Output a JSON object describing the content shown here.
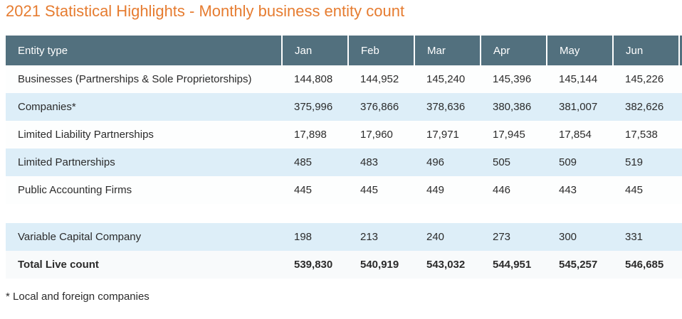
{
  "title": "2021 Statistical Highlights - Monthly business entity count",
  "footnote": "* Local and foreign companies",
  "colors": {
    "title_orange": "#e67c30",
    "header_bg": "#52707e",
    "header_text": "#ffffff",
    "alt_row_bg": "#ddeef8",
    "body_text": "#2b2b2b"
  },
  "table": {
    "columns": [
      "Entity type",
      "Jan",
      "Feb",
      "Mar",
      "Apr",
      "May",
      "Jun"
    ],
    "rows": [
      {
        "label": "Businesses (Partnerships & Sole Proprietorships)",
        "values": [
          "144,808",
          "144,952",
          "145,240",
          "145,396",
          "145,144",
          "145,226"
        ]
      },
      {
        "label": "Companies*",
        "values": [
          "375,996",
          "376,866",
          "378,636",
          "380,386",
          "381,007",
          "382,626"
        ]
      },
      {
        "label": "Limited Liability Partnerships",
        "values": [
          "17,898",
          "17,960",
          "17,971",
          "17,945",
          "17,854",
          "17,538"
        ]
      },
      {
        "label": "Limited Partnerships",
        "values": [
          "485",
          "483",
          "496",
          "505",
          "509",
          "519"
        ]
      },
      {
        "label": "Public Accounting Firms",
        "values": [
          "445",
          "445",
          "449",
          "446",
          "443",
          "445"
        ]
      },
      {
        "label": "",
        "values": [
          "",
          "",
          "",
          "",
          "",
          ""
        ]
      },
      {
        "label": "Variable Capital Company",
        "values": [
          "198",
          "213",
          "240",
          "273",
          "300",
          "331"
        ]
      }
    ],
    "total_row": {
      "label": "Total Live count",
      "values": [
        "539,830",
        "540,919",
        "543,032",
        "544,951",
        "545,257",
        "546,685"
      ]
    }
  },
  "chart_data": {
    "type": "table",
    "title": "2021 Statistical Highlights - Monthly business entity count",
    "categories": [
      "Jan",
      "Feb",
      "Mar",
      "Apr",
      "May",
      "Jun"
    ],
    "series": [
      {
        "name": "Businesses (Partnerships & Sole Proprietorships)",
        "values": [
          144808,
          144952,
          145240,
          145396,
          145144,
          145226
        ]
      },
      {
        "name": "Companies*",
        "values": [
          375996,
          376866,
          378636,
          380386,
          381007,
          382626
        ]
      },
      {
        "name": "Limited Liability Partnerships",
        "values": [
          17898,
          17960,
          17971,
          17945,
          17854,
          17538
        ]
      },
      {
        "name": "Limited Partnerships",
        "values": [
          485,
          483,
          496,
          505,
          509,
          519
        ]
      },
      {
        "name": "Public Accounting Firms",
        "values": [
          445,
          445,
          449,
          446,
          443,
          445
        ]
      },
      {
        "name": "Variable Capital Company",
        "values": [
          198,
          213,
          240,
          273,
          300,
          331
        ]
      },
      {
        "name": "Total Live count",
        "values": [
          539830,
          540919,
          543032,
          544951,
          545257,
          546685
        ]
      }
    ],
    "footnote": "* Local and foreign companies"
  }
}
